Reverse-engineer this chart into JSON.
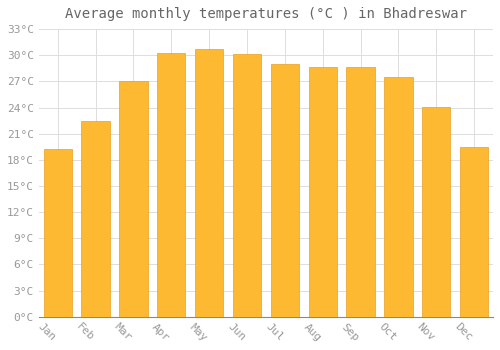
{
  "title": "Average monthly temperatures (°C ) in Bhadreswar",
  "months": [
    "Jan",
    "Feb",
    "Mar",
    "Apr",
    "May",
    "Jun",
    "Jul",
    "Aug",
    "Sep",
    "Oct",
    "Nov",
    "Dec"
  ],
  "values": [
    19.2,
    22.5,
    27.0,
    30.2,
    30.7,
    30.1,
    29.0,
    28.7,
    28.7,
    27.5,
    24.1,
    19.5
  ],
  "bar_color": "#FDB931",
  "bar_edge_color": "#E8A020",
  "background_color": "#FFFFFF",
  "grid_color": "#DDDDDD",
  "text_color": "#999999",
  "title_color": "#666666",
  "ylim": [
    0,
    33
  ],
  "yticks": [
    0,
    3,
    6,
    9,
    12,
    15,
    18,
    21,
    24,
    27,
    30,
    33
  ],
  "title_fontsize": 10,
  "tick_fontsize": 8,
  "font_family": "monospace",
  "bar_width": 0.75,
  "xlabel_rotation": -45,
  "xlabel_ha": "right"
}
